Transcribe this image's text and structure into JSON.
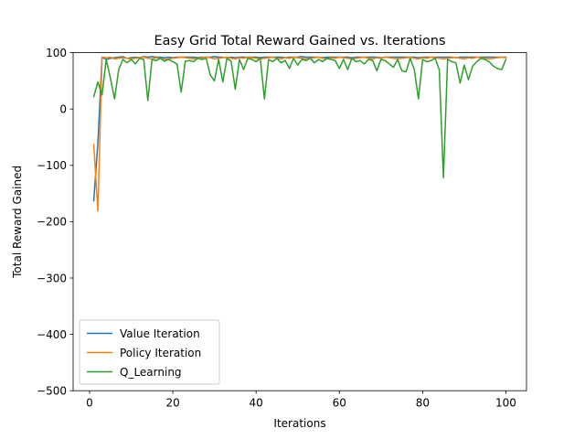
{
  "chart_data": {
    "type": "line",
    "title": "Easy Grid Total Reward Gained vs. Iterations",
    "xlabel": "Iterations",
    "ylabel": "Total Reward Gained",
    "xlim": [
      -3.95,
      104.95
    ],
    "ylim": [
      -500,
      100
    ],
    "xticks": [
      0,
      20,
      40,
      60,
      80,
      100
    ],
    "yticks": [
      -500,
      -400,
      -300,
      -200,
      -100,
      0,
      100
    ],
    "xtick_labels": [
      "0",
      "20",
      "40",
      "60",
      "80",
      "100"
    ],
    "ytick_labels": [
      "−500",
      "−400",
      "−300",
      "−200",
      "−100",
      "0",
      "100"
    ],
    "grid": false,
    "legend_position": "lower-left",
    "series": [
      {
        "name": "Value Iteration",
        "color": "#1f77b4",
        "x": [
          1,
          2,
          3,
          4,
          5,
          6,
          7,
          8,
          9,
          10,
          11,
          12,
          13,
          14,
          15,
          16,
          17,
          18,
          19,
          20,
          21,
          22,
          23,
          24,
          25,
          26,
          27,
          28,
          29,
          30,
          31,
          32,
          33,
          34,
          35,
          36,
          37,
          38,
          39,
          40,
          41,
          42,
          43,
          44,
          45,
          46,
          47,
          48,
          49,
          50,
          51,
          52,
          53,
          54,
          55,
          56,
          57,
          58,
          59,
          60,
          61,
          62,
          63,
          64,
          65,
          66,
          67,
          68,
          69,
          70,
          71,
          72,
          73,
          74,
          75,
          76,
          77,
          78,
          79,
          80,
          81,
          82,
          83,
          84,
          85,
          86,
          87,
          88,
          89,
          90,
          91,
          92,
          93,
          94,
          95,
          96,
          97,
          98,
          99,
          100
        ],
        "values": [
          -163,
          -60,
          92,
          88,
          90,
          91,
          92,
          93,
          90,
          91,
          92,
          91,
          93,
          92,
          93,
          92,
          92,
          91,
          92,
          91,
          92,
          92,
          92,
          92,
          92,
          91,
          92,
          92,
          92,
          93,
          92,
          92,
          91,
          92,
          91,
          92,
          92,
          92,
          92,
          92,
          91,
          92,
          92,
          92,
          92,
          92,
          91,
          92,
          92,
          92,
          93,
          92,
          92,
          92,
          92,
          91,
          92,
          92,
          92,
          92,
          92,
          92,
          91,
          92,
          92,
          92,
          92,
          92,
          92,
          91,
          92,
          92,
          92,
          92,
          92,
          92,
          92,
          92,
          91,
          92,
          92,
          92,
          92,
          92,
          92,
          92,
          92,
          91,
          92,
          92,
          92,
          92,
          92,
          92,
          92,
          92,
          92,
          92,
          92,
          92
        ]
      },
      {
        "name": "Policy Iteration",
        "color": "#ff7f0e",
        "x": [
          1,
          2,
          3,
          4,
          5,
          6,
          7,
          8,
          9,
          10,
          11,
          12,
          13,
          14,
          15,
          16,
          17,
          18,
          19,
          20,
          21,
          22,
          23,
          24,
          25,
          26,
          27,
          28,
          29,
          30,
          31,
          32,
          33,
          34,
          35,
          36,
          37,
          38,
          39,
          40,
          41,
          42,
          43,
          44,
          45,
          46,
          47,
          48,
          49,
          50,
          51,
          52,
          53,
          54,
          55,
          56,
          57,
          58,
          59,
          60,
          61,
          62,
          63,
          64,
          65,
          66,
          67,
          68,
          69,
          70,
          71,
          72,
          73,
          74,
          75,
          76,
          77,
          78,
          79,
          80,
          81,
          82,
          83,
          84,
          85,
          86,
          87,
          88,
          89,
          90,
          91,
          92,
          93,
          94,
          95,
          96,
          97,
          98,
          99,
          100
        ],
        "values": [
          -63,
          -181,
          92,
          91,
          92,
          89,
          90,
          91,
          90,
          89,
          90,
          91,
          92,
          90,
          89,
          91,
          90,
          88,
          89,
          90,
          91,
          92,
          91,
          90,
          89,
          90,
          91,
          92,
          91,
          89,
          90,
          91,
          92,
          90,
          89,
          91,
          90,
          92,
          91,
          90,
          89,
          90,
          91,
          92,
          90,
          89,
          91,
          90,
          92,
          91,
          90,
          89,
          90,
          91,
          92,
          90,
          89,
          91,
          90,
          92,
          91,
          90,
          89,
          90,
          91,
          92,
          90,
          89,
          91,
          90,
          92,
          91,
          90,
          89,
          90,
          91,
          92,
          90,
          89,
          91,
          90,
          92,
          91,
          90,
          89,
          90,
          91,
          92,
          90,
          89,
          91,
          90,
          92,
          91,
          90,
          89,
          90,
          91,
          92,
          91
        ]
      },
      {
        "name": "Q_Learning",
        "color": "#2ca02c",
        "x": [
          1,
          2,
          3,
          4,
          5,
          6,
          7,
          8,
          9,
          10,
          11,
          12,
          13,
          14,
          15,
          16,
          17,
          18,
          19,
          20,
          21,
          22,
          23,
          24,
          25,
          26,
          27,
          28,
          29,
          30,
          31,
          32,
          33,
          34,
          35,
          36,
          37,
          38,
          39,
          40,
          41,
          42,
          43,
          44,
          45,
          46,
          47,
          48,
          49,
          50,
          51,
          52,
          53,
          54,
          55,
          56,
          57,
          58,
          59,
          60,
          61,
          62,
          63,
          64,
          65,
          66,
          67,
          68,
          69,
          70,
          71,
          72,
          73,
          74,
          75,
          76,
          77,
          78,
          79,
          80,
          81,
          82,
          83,
          84,
          85,
          86,
          87,
          88,
          89,
          90,
          91,
          92,
          93,
          94,
          95,
          96,
          97,
          98,
          99,
          100
        ],
        "values": [
          22,
          48,
          25,
          88,
          55,
          18,
          70,
          88,
          82,
          88,
          80,
          90,
          88,
          15,
          88,
          86,
          90,
          85,
          88,
          84,
          80,
          30,
          85,
          86,
          84,
          90,
          88,
          90,
          60,
          50,
          88,
          48,
          90,
          85,
          35,
          88,
          70,
          90,
          88,
          84,
          90,
          18,
          88,
          84,
          90,
          82,
          86,
          72,
          90,
          78,
          88,
          86,
          90,
          82,
          88,
          84,
          90,
          88,
          86,
          72,
          88,
          70,
          90,
          84,
          86,
          80,
          88,
          86,
          68,
          88,
          86,
          80,
          74,
          88,
          68,
          66,
          90,
          70,
          18,
          88,
          84,
          86,
          90,
          70,
          -122,
          88,
          84,
          82,
          46,
          78,
          52,
          76,
          84,
          90,
          88,
          84,
          76,
          72,
          70,
          88
        ]
      }
    ]
  }
}
